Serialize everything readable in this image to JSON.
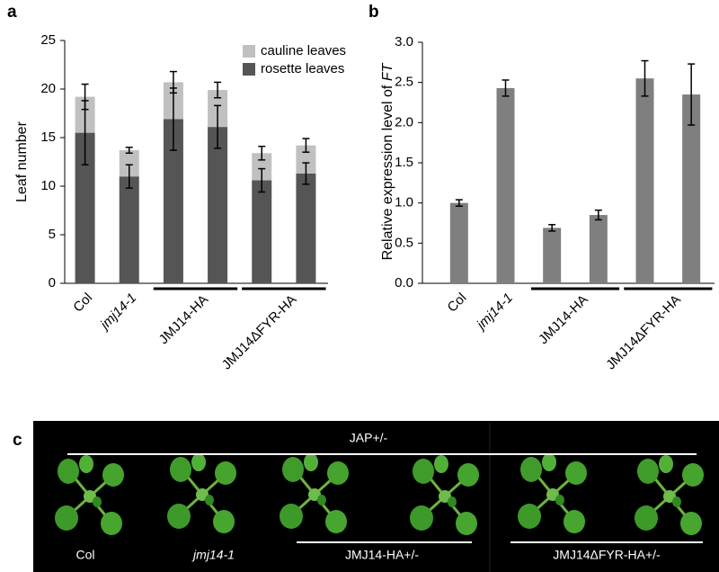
{
  "chart_data": [
    {
      "type": "bar",
      "panel_label": "a",
      "ylabel": "Leaf number",
      "stacked": true,
      "categories": [
        "Col",
        "jmj14-1",
        null,
        null,
        null,
        null
      ],
      "group_labels": [
        "JMJ14-HA",
        "JMJ14ΔFYR-HA"
      ],
      "series": [
        {
          "name": "rosette leaves",
          "color": "#555555",
          "values": [
            15.5,
            11.0,
            16.9,
            16.1,
            10.6,
            11.3
          ],
          "errors": [
            3.3,
            1.2,
            3.2,
            2.2,
            1.2,
            1.1
          ]
        },
        {
          "name": "cauline leaves",
          "color": "#c0c0c0",
          "values": [
            3.7,
            2.7,
            3.8,
            3.8,
            2.8,
            2.9
          ],
          "errors": [
            1.3,
            0.3,
            1.1,
            0.8,
            0.7,
            0.7
          ]
        }
      ],
      "ylim": [
        0,
        25
      ],
      "yticks": [
        0,
        5,
        10,
        15,
        20,
        25
      ],
      "legend": "upper right"
    },
    {
      "type": "bar",
      "panel_label": "b",
      "ylabel": "Relative expression level of ",
      "ylabel_italic": "FT",
      "categories": [
        "Col",
        "jmj14-1",
        null,
        null,
        null,
        null
      ],
      "group_labels": [
        "JMJ14-HA",
        "JMJ14ΔFYR-HA"
      ],
      "series": [
        {
          "name": null,
          "color": "#7f7f7f",
          "values": [
            1.0,
            2.43,
            0.69,
            0.85,
            2.55,
            2.35
          ],
          "errors": [
            0.04,
            0.1,
            0.04,
            0.06,
            0.22,
            0.38
          ]
        }
      ],
      "ylim": [
        0,
        3
      ],
      "yticks": [
        {
          "value": 0,
          "label": "0.0"
        },
        {
          "value": 0.5,
          "label": "0.5"
        },
        {
          "value": 1,
          "label": "1.0"
        },
        {
          "value": 1.5,
          "label": "1.5"
        },
        {
          "value": 2,
          "label": "2.0"
        },
        {
          "value": 2.5,
          "label": "2.5"
        },
        {
          "value": 3,
          "label": "3.0"
        }
      ]
    }
  ],
  "panel_c": {
    "panel_label": "c",
    "top_label": "JAP+/-",
    "labels": [
      "Col",
      "jmj14-1",
      "JMJ14-HA+/-",
      "JMJ14ΔFYR-HA+/-"
    ]
  }
}
